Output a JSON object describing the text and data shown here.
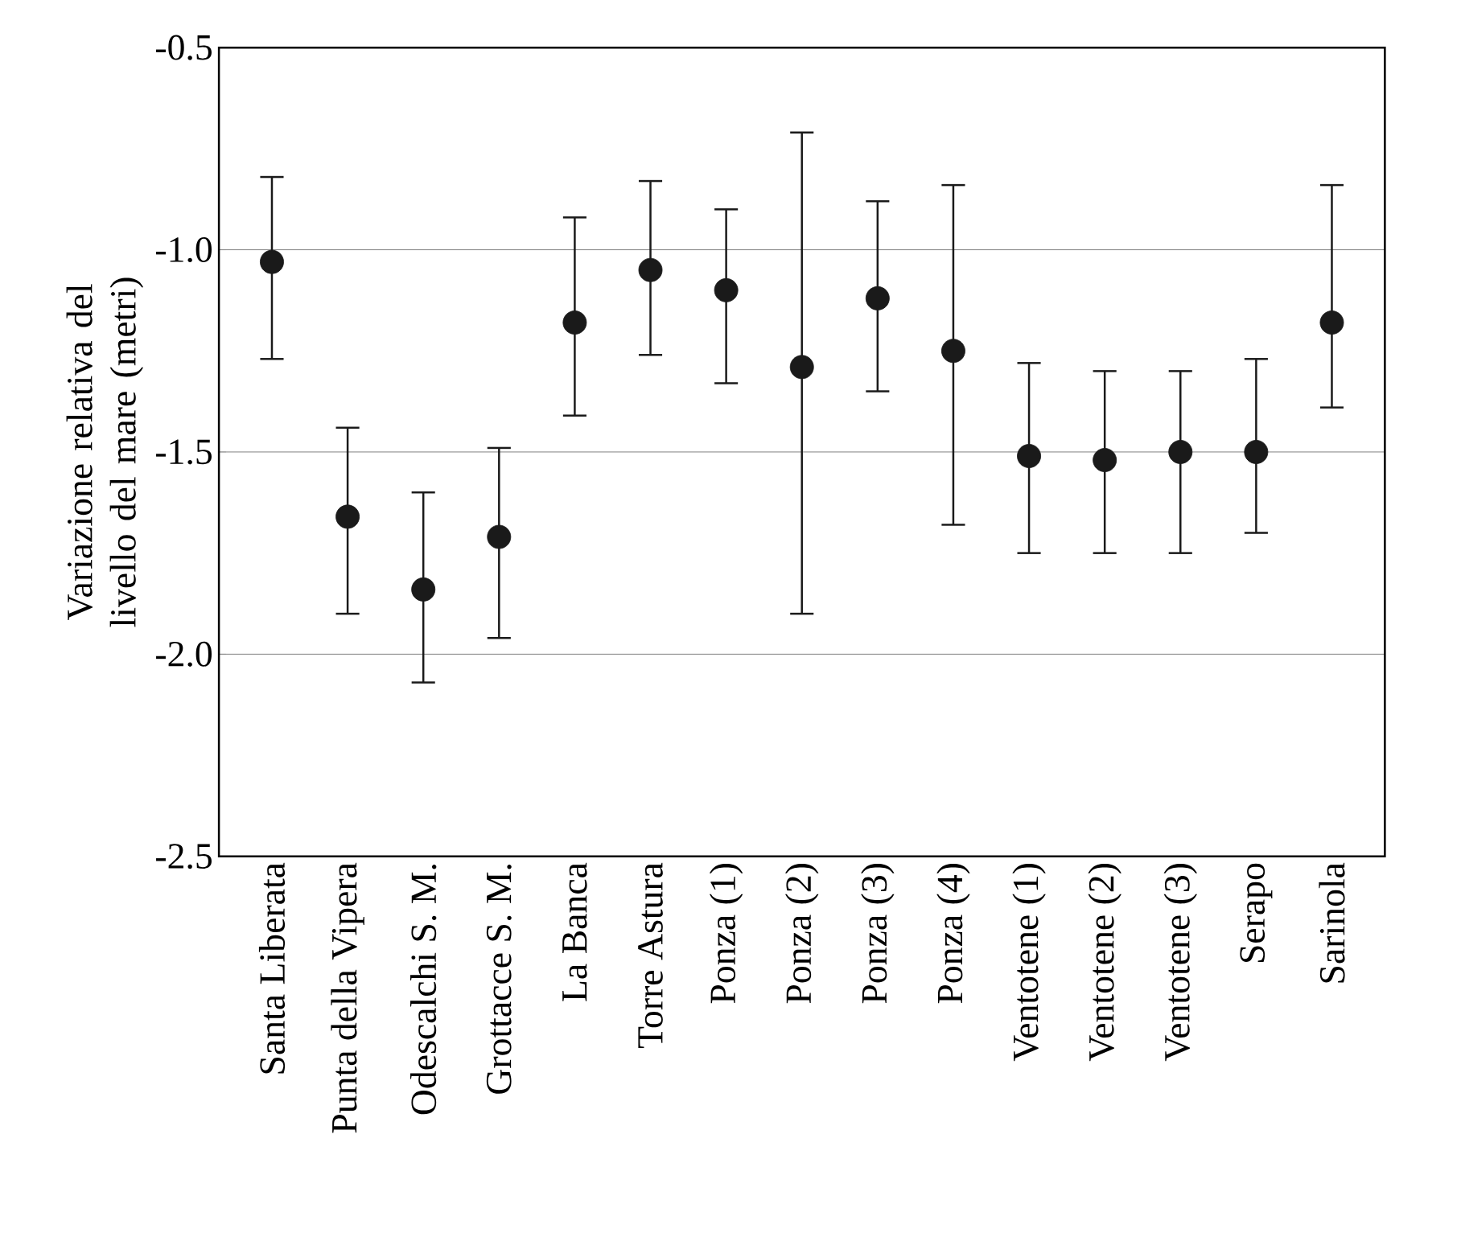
{
  "chart_data": {
    "type": "scatter",
    "ylabel": "Variazione relativa del livello del mare (metri)",
    "categories": [
      "Santa Liberata",
      "Punta della Vipera",
      "Odescalchi S. M.",
      "Grottacce S. M.",
      "La Banca",
      "Torre Astura",
      "Ponza (1)",
      "Ponza (2)",
      "Ponza (3)",
      "Ponza (4)",
      "Ventotene (1)",
      "Ventotene (2)",
      "Ventotene (3)",
      "Serapo",
      "Sarinola"
    ],
    "values": [
      -1.03,
      -1.66,
      -1.84,
      -1.71,
      -1.18,
      -1.05,
      -1.1,
      -1.29,
      -1.12,
      -1.25,
      -1.51,
      -1.52,
      -1.5,
      -1.5,
      -1.18
    ],
    "errors": [
      [
        -1.27,
        -0.82
      ],
      [
        -1.9,
        -1.44
      ],
      [
        -2.07,
        -1.6
      ],
      [
        -1.96,
        -1.49
      ],
      [
        -1.41,
        -0.92
      ],
      [
        -1.26,
        -0.83
      ],
      [
        -1.33,
        -0.9
      ],
      [
        -1.9,
        -0.71
      ],
      [
        -1.35,
        -0.88
      ],
      [
        -1.68,
        -0.84
      ],
      [
        -1.75,
        -1.28
      ],
      [
        -1.75,
        -1.3
      ],
      [
        -1.75,
        -1.3
      ],
      [
        -1.7,
        -1.27
      ],
      [
        -1.39,
        -0.84
      ]
    ],
    "color": "#1a1a1a",
    "marker": "circle",
    "ylim": [
      -2.5,
      -0.5
    ],
    "yticks": [
      {
        "value": -2.5,
        "label": "-2.5"
      },
      {
        "value": -2.0,
        "label": "-2.0"
      },
      {
        "value": -1.5,
        "label": "-1.5"
      },
      {
        "value": -1.0,
        "label": "-1.0"
      },
      {
        "value": -0.5,
        "label": "-0.5"
      }
    ],
    "grid": "y"
  }
}
